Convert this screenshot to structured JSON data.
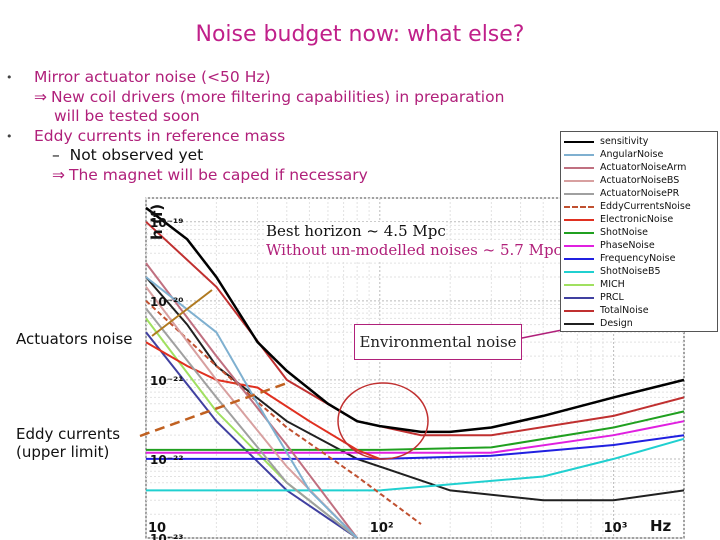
{
  "slide": {
    "title": "Noise budget now: what else?",
    "bullets": [
      {
        "kind": "bullet",
        "text": "Mirror actuator noise (<50 Hz)"
      },
      {
        "kind": "arrow",
        "text": "New coil drivers (more filtering capabilities) in preparation"
      },
      {
        "kind": "cont",
        "text": "will be tested soon"
      },
      {
        "kind": "bullet",
        "text": "Eddy currents in reference mass"
      },
      {
        "kind": "dash",
        "text": "Not observed yet"
      },
      {
        "kind": "arrow2",
        "text": "The magnet will be caped if necessary"
      }
    ],
    "arrow_glyph": "⇒",
    "bullet_glyph": "•",
    "dash_glyph": "–"
  },
  "annotations": {
    "horizon": "Best horizon ~ 4.5 Mpc",
    "horizon_unmodelled": "Without un-modelled noises ~ 5.7 Mpc",
    "actuators": "Actuators noise",
    "eddy_line1": "Eddy currents",
    "eddy_line2": "(upper limit)",
    "environmental": "Environmental noise",
    "xunit": "Hz"
  },
  "chart_data": {
    "type": "line",
    "title": "",
    "xlabel": "Hz",
    "ylabel": "h (f)",
    "xscale": "log",
    "yscale": "log",
    "xlim": [
      10,
      2000
    ],
    "ylim": [
      1e-23,
      2e-19
    ],
    "x_ticks": [
      "10",
      "10^2",
      "10^3"
    ],
    "y_ticks": [
      "10^-19",
      "10^-20",
      "10^-21",
      "10^-22",
      "10^-23"
    ],
    "grid": true,
    "legend_position": "top-right",
    "series": [
      {
        "name": "sensitivity",
        "color": "#000000",
        "x": [
          10,
          15,
          20,
          30,
          40,
          60,
          80,
          100,
          150,
          200,
          300,
          500,
          1000,
          2000
        ],
        "y": [
          1.5e-19,
          6e-20,
          2e-20,
          3e-21,
          1.3e-21,
          5e-22,
          3e-22,
          2.6e-22,
          2.2e-22,
          2.2e-22,
          2.5e-22,
          3.5e-22,
          6e-22,
          1e-21
        ]
      },
      {
        "name": "AngularNoise",
        "color": "#7fb0d0",
        "x": [
          10,
          20,
          30,
          50,
          80
        ],
        "y": [
          2e-20,
          4e-21,
          5e-22,
          4e-23,
          1e-23
        ]
      },
      {
        "name": "ActuatorNoiseArm",
        "color": "#c07080",
        "x": [
          10,
          20,
          40,
          80
        ],
        "y": [
          3e-20,
          2e-21,
          1.5e-22,
          1e-23
        ]
      },
      {
        "name": "ActuatorNoiseBS",
        "color": "#d8a0a0",
        "x": [
          10,
          20,
          40,
          80
        ],
        "y": [
          1.5e-20,
          1e-21,
          8e-23,
          1e-23
        ]
      },
      {
        "name": "ActuatorNoisePR",
        "color": "#a0a0a0",
        "x": [
          10,
          20,
          40,
          80
        ],
        "y": [
          8e-21,
          6e-22,
          5e-23,
          1e-23
        ]
      },
      {
        "name": "EddyCurrentsNoise",
        "color": "#c05030",
        "x": [
          10,
          20,
          40,
          80,
          150
        ],
        "y": [
          1e-20,
          1.5e-21,
          2.5e-22,
          6e-23,
          1.5e-23
        ]
      },
      {
        "name": "ElectronicNoise",
        "color": "#e03020",
        "x": [
          10,
          15,
          20,
          30,
          50,
          80,
          100
        ],
        "y": [
          3e-21,
          1.5e-21,
          1e-21,
          8e-22,
          3e-22,
          1.3e-22,
          1e-22
        ]
      },
      {
        "name": "ShotNoise",
        "color": "#20a020",
        "x": [
          10,
          100,
          300,
          1000,
          2000
        ],
        "y": [
          1.3e-22,
          1.3e-22,
          1.4e-22,
          2.5e-22,
          4e-22
        ]
      },
      {
        "name": "PhaseNoise",
        "color": "#e020e0",
        "x": [
          10,
          100,
          300,
          1000,
          2000
        ],
        "y": [
          1.2e-22,
          1.2e-22,
          1.2e-22,
          2e-22,
          3e-22
        ]
      },
      {
        "name": "FrequencyNoise",
        "color": "#2020e0",
        "x": [
          10,
          100,
          300,
          1000,
          2000
        ],
        "y": [
          1e-22,
          1e-22,
          1.1e-22,
          1.5e-22,
          2e-22
        ]
      },
      {
        "name": "ShotNoiseB5",
        "color": "#20d0d0",
        "x": [
          10,
          100,
          500,
          1000,
          2000
        ],
        "y": [
          4e-23,
          4e-23,
          6e-23,
          1e-22,
          1.8e-22
        ]
      },
      {
        "name": "MICH",
        "color": "#a0e060",
        "x": [
          10,
          20,
          40,
          80
        ],
        "y": [
          6e-21,
          4e-22,
          5e-23,
          1e-23
        ]
      },
      {
        "name": "PRCL",
        "color": "#4040a0",
        "x": [
          10,
          20,
          40,
          80
        ],
        "y": [
          4e-21,
          3e-22,
          4e-23,
          1e-23
        ]
      },
      {
        "name": "TotalNoise",
        "color": "#c03030",
        "x": [
          10,
          20,
          40,
          80,
          150,
          300,
          1000,
          2000
        ],
        "y": [
          1e-19,
          1.5e-20,
          1e-21,
          3e-22,
          2e-22,
          2e-22,
          3.5e-22,
          6e-22
        ]
      },
      {
        "name": "Design",
        "color": "#202020",
        "x": [
          10,
          15,
          20,
          40,
          80,
          200,
          500,
          1000,
          2000
        ],
        "y": [
          2e-20,
          5e-21,
          1.5e-21,
          3e-22,
          1e-22,
          4e-23,
          3e-23,
          3e-23,
          4e-23
        ]
      }
    ]
  }
}
